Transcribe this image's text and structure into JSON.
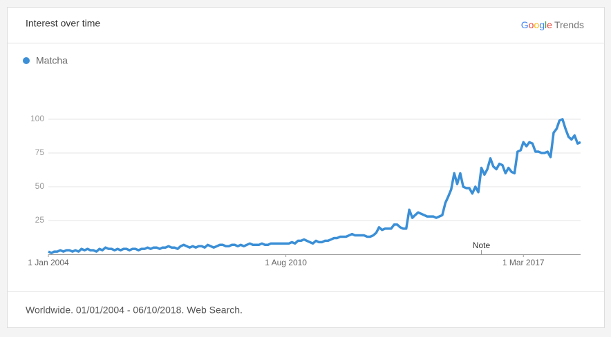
{
  "chart_data": {
    "type": "line",
    "title": "Interest over time",
    "logo": "Google Trends",
    "footer": "Worldwide. 01/01/2004 - 06/10/2018. Web Search.",
    "x": [
      "2004-01-01",
      "2004-02-01",
      "2004-03-01",
      "2004-04-01",
      "2004-05-01",
      "2004-06-01",
      "2004-07-01",
      "2004-08-01",
      "2004-09-01",
      "2004-10-01",
      "2004-11-01",
      "2004-12-01",
      "2005-01-01",
      "2005-02-01",
      "2005-03-01",
      "2005-04-01",
      "2005-05-01",
      "2005-06-01",
      "2005-07-01",
      "2005-08-01",
      "2005-09-01",
      "2005-10-01",
      "2005-11-01",
      "2005-12-01",
      "2006-01-01",
      "2006-02-01",
      "2006-03-01",
      "2006-04-01",
      "2006-05-01",
      "2006-06-01",
      "2006-07-01",
      "2006-08-01",
      "2006-09-01",
      "2006-10-01",
      "2006-11-01",
      "2006-12-01",
      "2007-01-01",
      "2007-02-01",
      "2007-03-01",
      "2007-04-01",
      "2007-05-01",
      "2007-06-01",
      "2007-07-01",
      "2007-08-01",
      "2007-09-01",
      "2007-10-01",
      "2007-11-01",
      "2007-12-01",
      "2008-01-01",
      "2008-02-01",
      "2008-03-01",
      "2008-04-01",
      "2008-05-01",
      "2008-06-01",
      "2008-07-01",
      "2008-08-01",
      "2008-09-01",
      "2008-10-01",
      "2008-11-01",
      "2008-12-01",
      "2009-01-01",
      "2009-02-01",
      "2009-03-01",
      "2009-04-01",
      "2009-05-01",
      "2009-06-01",
      "2009-07-01",
      "2009-08-01",
      "2009-09-01",
      "2009-10-01",
      "2009-11-01",
      "2009-12-01",
      "2010-01-01",
      "2010-02-01",
      "2010-03-01",
      "2010-04-01",
      "2010-05-01",
      "2010-06-01",
      "2010-07-01",
      "2010-08-01",
      "2010-09-01",
      "2010-10-01",
      "2010-11-01",
      "2010-12-01",
      "2011-01-01",
      "2011-02-01",
      "2011-03-01",
      "2011-04-01",
      "2011-05-01",
      "2011-06-01",
      "2011-07-01",
      "2011-08-01",
      "2011-09-01",
      "2011-10-01",
      "2011-11-01",
      "2011-12-01",
      "2012-01-01",
      "2012-02-01",
      "2012-03-01",
      "2012-04-01",
      "2012-05-01",
      "2012-06-01",
      "2012-07-01",
      "2012-08-01",
      "2012-09-01",
      "2012-10-01",
      "2012-11-01",
      "2012-12-01",
      "2013-01-01",
      "2013-02-01",
      "2013-03-01",
      "2013-04-01",
      "2013-05-01",
      "2013-06-01",
      "2013-07-01",
      "2013-08-01",
      "2013-09-01",
      "2013-10-01",
      "2013-11-01",
      "2013-12-01",
      "2014-01-01",
      "2014-02-01",
      "2014-03-01",
      "2014-04-01",
      "2014-05-01",
      "2014-06-01",
      "2014-07-01",
      "2014-08-01",
      "2014-09-01",
      "2014-10-01",
      "2014-11-01",
      "2014-12-01",
      "2015-01-01",
      "2015-02-01",
      "2015-03-01",
      "2015-04-01",
      "2015-05-01",
      "2015-06-01",
      "2015-07-01",
      "2015-08-01",
      "2015-09-01",
      "2015-10-01",
      "2015-11-01",
      "2015-12-01",
      "2016-01-01",
      "2016-02-01",
      "2016-03-01",
      "2016-04-01",
      "2016-05-01",
      "2016-06-01",
      "2016-07-01",
      "2016-08-01",
      "2016-09-01",
      "2016-10-01",
      "2016-11-01",
      "2016-12-01",
      "2017-01-01",
      "2017-02-01",
      "2017-03-01",
      "2017-04-01",
      "2017-05-01",
      "2017-06-01",
      "2017-07-01",
      "2017-08-01",
      "2017-09-01",
      "2017-10-01",
      "2017-11-01",
      "2017-12-01",
      "2018-01-01",
      "2018-02-01",
      "2018-03-01",
      "2018-04-01",
      "2018-05-01",
      "2018-06-01",
      "2018-07-01",
      "2018-08-01",
      "2018-09-01",
      "2018-10-01"
    ],
    "series": [
      {
        "name": "Matcha",
        "color": "#3b8fd6",
        "values": [
          2,
          1,
          2,
          2,
          3,
          2,
          3,
          3,
          2,
          3,
          2,
          4,
          3,
          4,
          3,
          3,
          2,
          4,
          3,
          5,
          4,
          4,
          3,
          4,
          3,
          4,
          4,
          3,
          4,
          4,
          3,
          4,
          4,
          5,
          4,
          5,
          5,
          4,
          5,
          5,
          6,
          5,
          5,
          4,
          6,
          7,
          6,
          5,
          6,
          5,
          6,
          6,
          5,
          7,
          6,
          5,
          6,
          7,
          7,
          6,
          6,
          7,
          7,
          6,
          7,
          6,
          7,
          8,
          7,
          7,
          7,
          8,
          7,
          7,
          8,
          8,
          8,
          8,
          8,
          8,
          8,
          9,
          8,
          10,
          10,
          11,
          10,
          9,
          8,
          10,
          9,
          9,
          10,
          10,
          11,
          12,
          12,
          13,
          13,
          13,
          14,
          15,
          14,
          14,
          14,
          14,
          13,
          13,
          14,
          16,
          20,
          18,
          19,
          19,
          19,
          22,
          22,
          20,
          19,
          19,
          33,
          27,
          29,
          31,
          30,
          29,
          28,
          28,
          28,
          27,
          28,
          29,
          38,
          43,
          48,
          60,
          52,
          60,
          50,
          49,
          49,
          45,
          50,
          46,
          64,
          59,
          63,
          71,
          65,
          63,
          67,
          66,
          60,
          64,
          61,
          60,
          76,
          77,
          83,
          80,
          83,
          82,
          76,
          76,
          75,
          75,
          76,
          72,
          90,
          93,
          99,
          100,
          93,
          87,
          85,
          88,
          82,
          83
        ]
      }
    ],
    "xlim": [
      "2004-01-01",
      "2018-10-01"
    ],
    "xticks": [
      {
        "value": "2004-01-01",
        "label": "1 Jan 2004"
      },
      {
        "value": "2010-08-01",
        "label": "1 Aug 2010"
      },
      {
        "value": "2017-03-01",
        "label": "1 Mar 2017"
      }
    ],
    "ylim": [
      0,
      100
    ],
    "yticks": [
      25,
      50,
      75,
      100
    ],
    "grid": true,
    "annotations": [
      {
        "label": "Note",
        "x": "2016-01-01"
      }
    ]
  }
}
